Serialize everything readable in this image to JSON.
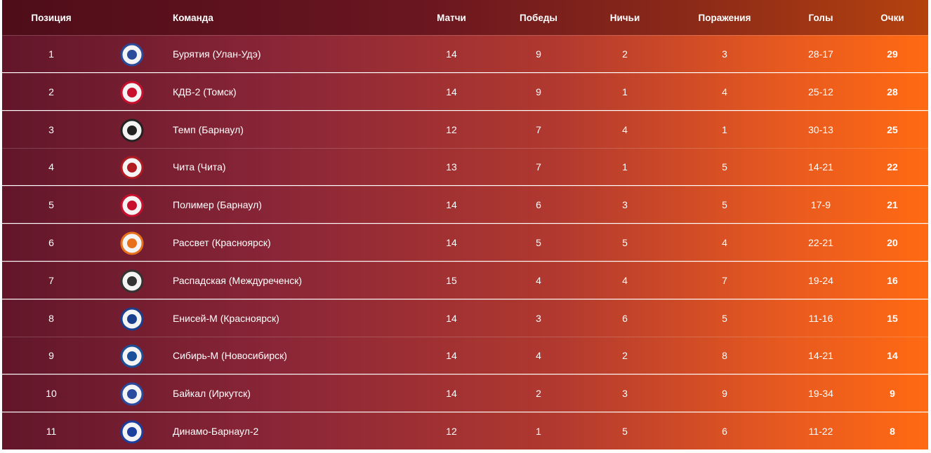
{
  "table": {
    "headers": [
      "Позиция",
      "Команда",
      "Матчи",
      "Победы",
      "Ничьи",
      "Поражения",
      "Голы",
      "Очки"
    ],
    "rows": [
      [
        1,
        "Бурятия (Улан-Удэ)",
        14,
        9,
        2,
        3,
        "28-17",
        29
      ],
      [
        2,
        "КДВ-2 (Томск)",
        14,
        9,
        1,
        4,
        "25-12",
        28
      ],
      [
        3,
        "Темп (Барнаул)",
        12,
        7,
        4,
        1,
        "30-13",
        25
      ],
      [
        4,
        "Чита (Чита)",
        13,
        7,
        1,
        5,
        "14-21",
        22
      ],
      [
        5,
        "Полимер (Барнаул)",
        14,
        6,
        3,
        5,
        "17-9",
        21
      ],
      [
        6,
        "Рассвет (Красноярск)",
        14,
        5,
        5,
        4,
        "22-21",
        20
      ],
      [
        7,
        "Распадская (Междуреченск)",
        15,
        4,
        4,
        7,
        "19-24",
        16
      ],
      [
        8,
        "Енисей-М (Красноярск)",
        14,
        3,
        6,
        5,
        "11-16",
        15
      ],
      [
        9,
        "Сибирь-М (Новосибирск)",
        14,
        4,
        2,
        8,
        "14-21",
        14
      ],
      [
        10,
        "Байкал (Иркутск)",
        14,
        2,
        3,
        9,
        "19-34",
        9
      ],
      [
        11,
        "Динамо-Барнаул-2",
        12,
        1,
        5,
        6,
        "11-22",
        8
      ]
    ]
  }
}
